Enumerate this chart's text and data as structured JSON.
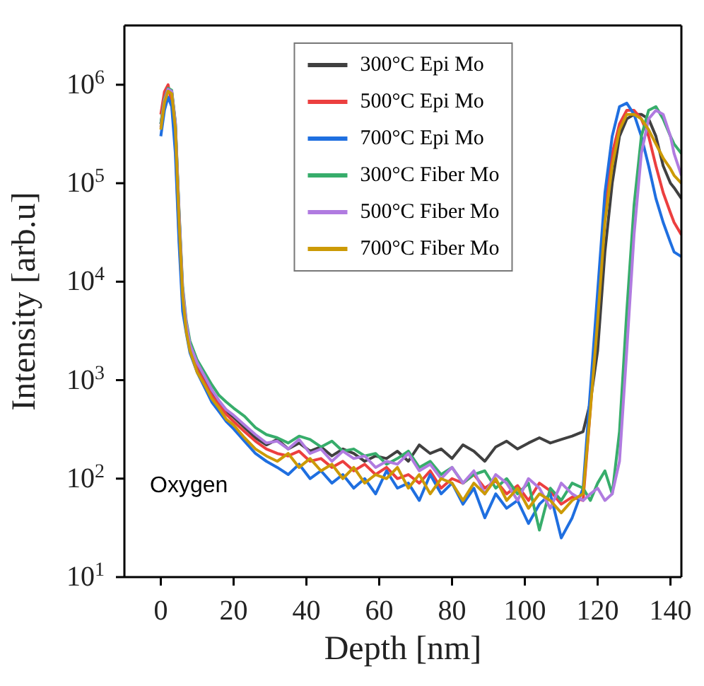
{
  "chart_data": {
    "type": "line",
    "xlabel": "Depth [nm]",
    "ylabel": "Intensity [arb.u]",
    "annotations": [
      "Oxygen"
    ],
    "log": "y",
    "legend": "top",
    "marker": "none",
    "line_style": "solid",
    "xlim": [
      -10,
      143
    ],
    "xticks": [
      0,
      20,
      40,
      60,
      80,
      100,
      120,
      140
    ],
    "ylim": [
      10,
      4000000
    ],
    "yticks": [
      {
        "value": 10,
        "label": "10$^{1}$"
      },
      {
        "value": 100,
        "label": "10$^{2}$"
      },
      {
        "value": 1000,
        "label": "10$^{3}$"
      },
      {
        "value": 10000,
        "label": "10$^{4}$"
      },
      {
        "value": 100000,
        "label": "10$^{5}$"
      },
      {
        "value": 1000000,
        "label": "10$^{6}$"
      }
    ],
    "x": [
      0,
      1,
      2,
      3,
      4,
      5,
      6,
      7,
      8,
      10,
      12,
      14,
      16,
      18,
      20,
      23,
      26,
      29,
      32,
      35,
      38,
      41,
      44,
      47,
      50,
      53,
      56,
      59,
      62,
      65,
      68,
      71,
      74,
      77,
      80,
      83,
      86,
      89,
      92,
      95,
      98,
      101,
      104,
      107,
      110,
      113,
      116,
      118,
      120,
      122,
      124,
      126,
      128,
      130,
      132,
      134,
      136,
      138,
      140,
      141,
      143
    ],
    "series": [
      {
        "name": "300°C Epi Mo",
        "color": "#404040",
        "values": [
          400000,
          700000,
          900000,
          850000,
          400000,
          50000,
          8000,
          3500,
          2200,
          1400,
          1000,
          750,
          600,
          480,
          420,
          330,
          260,
          220,
          250,
          200,
          230,
          190,
          210,
          170,
          200,
          180,
          150,
          170,
          160,
          190,
          150,
          220,
          180,
          200,
          160,
          220,
          190,
          150,
          210,
          240,
          200,
          230,
          260,
          230,
          250,
          270,
          300,
          600,
          2000,
          20000,
          100000,
          300000,
          450000,
          500000,
          500000,
          450000,
          300000,
          150000,
          100000,
          90000,
          70000
        ]
      },
      {
        "name": "500°C Epi Mo",
        "color": "#ec3f3f",
        "values": [
          500000,
          850000,
          1000000,
          650000,
          250000,
          30000,
          6000,
          3300,
          2100,
          1300,
          950,
          700,
          560,
          450,
          380,
          300,
          240,
          200,
          180,
          170,
          190,
          150,
          160,
          130,
          150,
          120,
          140,
          110,
          130,
          100,
          110,
          90,
          120,
          80,
          100,
          90,
          110,
          80,
          95,
          70,
          85,
          60,
          90,
          75,
          55,
          65,
          60,
          500,
          5000,
          50000,
          200000,
          400000,
          550000,
          550000,
          450000,
          300000,
          150000,
          80000,
          50000,
          40000,
          30000
        ]
      },
      {
        "name": "700°C Epi Mo",
        "color": "#1f6fe0",
        "values": [
          300000,
          550000,
          750000,
          600000,
          200000,
          25000,
          5000,
          3000,
          1900,
          1200,
          850,
          600,
          480,
          380,
          320,
          240,
          180,
          150,
          130,
          110,
          140,
          100,
          120,
          90,
          110,
          80,
          100,
          70,
          120,
          80,
          90,
          60,
          110,
          70,
          90,
          55,
          80,
          40,
          70,
          50,
          60,
          35,
          55,
          70,
          25,
          40,
          80,
          800,
          8000,
          80000,
          300000,
          600000,
          650000,
          500000,
          300000,
          150000,
          70000,
          40000,
          25000,
          20000,
          18000
        ]
      },
      {
        "name": "300°C Fiber Mo",
        "color": "#37ad6b",
        "values": [
          400000,
          720000,
          920000,
          880000,
          420000,
          55000,
          9000,
          4000,
          2500,
          1600,
          1200,
          900,
          700,
          600,
          520,
          430,
          330,
          280,
          260,
          230,
          270,
          250,
          210,
          240,
          190,
          200,
          170,
          180,
          140,
          160,
          190,
          130,
          150,
          110,
          130,
          90,
          110,
          120,
          80,
          100,
          70,
          90,
          30,
          80,
          60,
          90,
          80,
          60,
          90,
          120,
          70,
          300,
          5000,
          60000,
          300000,
          550000,
          600000,
          450000,
          300000,
          250000,
          200000
        ]
      },
      {
        "name": "500°C Fiber Mo",
        "color": "#b07be0",
        "values": [
          370000,
          690000,
          900000,
          860000,
          410000,
          52000,
          8500,
          3800,
          2300,
          1500,
          1100,
          800,
          620,
          500,
          440,
          350,
          280,
          230,
          240,
          200,
          250,
          180,
          200,
          150,
          190,
          160,
          170,
          130,
          150,
          140,
          180,
          120,
          140,
          100,
          130,
          90,
          120,
          70,
          110,
          90,
          60,
          100,
          80,
          50,
          90,
          70,
          60,
          70,
          80,
          60,
          70,
          150,
          2000,
          30000,
          200000,
          450000,
          550000,
          500000,
          300000,
          200000,
          120000
        ]
      },
      {
        "name": "700°C Fiber Mo",
        "color": "#cc9a06",
        "values": [
          350000,
          660000,
          860000,
          810000,
          360000,
          42000,
          7200,
          3100,
          2000,
          1200,
          900,
          650,
          520,
          400,
          350,
          260,
          200,
          170,
          150,
          180,
          130,
          160,
          120,
          140,
          100,
          130,
          90,
          110,
          100,
          130,
          80,
          110,
          70,
          100,
          90,
          60,
          90,
          70,
          100,
          60,
          80,
          50,
          70,
          60,
          45,
          60,
          70,
          500,
          4000,
          40000,
          150000,
          350000,
          500000,
          500000,
          450000,
          350000,
          250000,
          180000,
          140000,
          120000,
          100000
        ]
      }
    ]
  }
}
